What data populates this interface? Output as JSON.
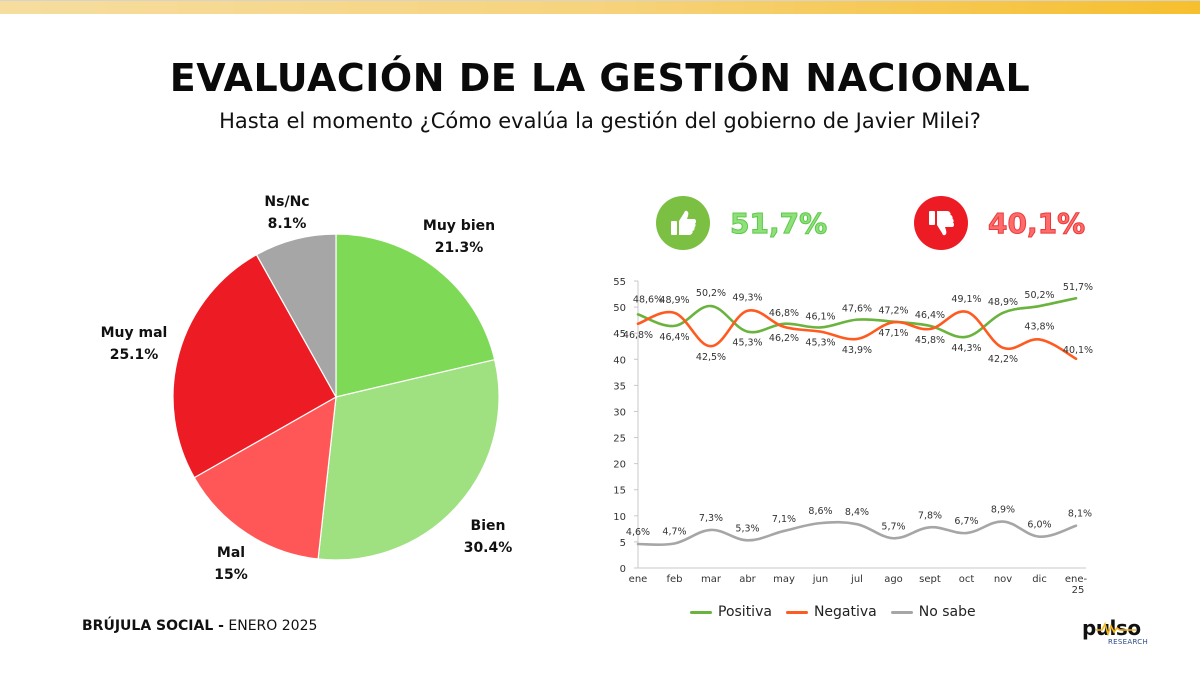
{
  "header": {
    "title": "EVALUACIÓN DE LA GESTIÓN NACIONAL",
    "subtitle": "Hasta el momento ¿Cómo evalúa la gestión del gobierno de Javier Milei?"
  },
  "kpis": {
    "positive": {
      "value": "51,7%",
      "icon": "thumbs-up-icon",
      "color": "#7bc043"
    },
    "negative": {
      "value": "40,1%",
      "icon": "thumbs-down-icon",
      "color": "#ed1c24"
    }
  },
  "footer": {
    "brand": "BRÚJULA SOCIAL -",
    "period": "ENERO 2025"
  },
  "logo": {
    "word": "pulso",
    "sub": "RESEARCH"
  },
  "legend": [
    {
      "name": "Positiva",
      "color": "#6ab33e"
    },
    {
      "name": "Negativa",
      "color": "#ff5a1f"
    },
    {
      "name": "No sabe",
      "color": "#a6a6a6"
    }
  ],
  "chart_data": [
    {
      "type": "pie",
      "title": "",
      "slices": [
        {
          "label": "Muy bien",
          "value": 21.3,
          "display": "21.3%",
          "color": "#7ed957"
        },
        {
          "label": "Bien",
          "value": 30.4,
          "display": "30.4%",
          "color": "#9fe080"
        },
        {
          "label": "Mal",
          "value": 15,
          "display": "15%",
          "color": "#ff5757"
        },
        {
          "label": "Muy mal",
          "value": 25.1,
          "display": "25.1%",
          "color": "#ed1c24"
        },
        {
          "label": "Ns/Nc",
          "value": 8.1,
          "display": "8.1%",
          "color": "#a6a6a6"
        }
      ],
      "start": "12 o'clock, clockwise"
    },
    {
      "type": "line",
      "title": "",
      "xlabel": "",
      "ylabel": "",
      "categories": [
        "ene",
        "feb",
        "mar",
        "abr",
        "may",
        "jun",
        "jul",
        "ago",
        "sept",
        "oct",
        "nov",
        "dic",
        "ene-25"
      ],
      "ylim": [
        0,
        55
      ],
      "yticks": [
        0,
        5,
        10,
        15,
        20,
        25,
        30,
        35,
        40,
        45,
        50,
        55
      ],
      "grid": false,
      "legend_position": "bottom",
      "series": [
        {
          "name": "Positiva",
          "color": "#6ab33e",
          "values": [
            48.6,
            46.4,
            50.2,
            45.3,
            46.8,
            46.1,
            47.6,
            47.2,
            46.4,
            44.3,
            48.9,
            50.2,
            51.7
          ],
          "labels": [
            "48,6%",
            "46,4%",
            "50,2%",
            "45,3%",
            "46,8%",
            "46,1%",
            "47,6%",
            "47,2%",
            "46,4%",
            "44,3%",
            "48,9%",
            "50,2%",
            "51,7%"
          ]
        },
        {
          "name": "Negativa",
          "color": "#ff5a1f",
          "values": [
            46.8,
            48.9,
            42.5,
            49.3,
            46.2,
            45.3,
            43.9,
            47.1,
            45.8,
            49.1,
            42.2,
            43.8,
            40.1
          ],
          "labels": [
            "46,8%",
            "48,9%",
            "42,5%",
            "49,3%",
            "46,2%",
            "45,3%",
            "43,9%",
            "47,1%",
            "45,8%",
            "49,1%",
            "42,2%",
            "43,8%",
            "40,1%"
          ]
        },
        {
          "name": "No sabe",
          "color": "#a6a6a6",
          "values": [
            4.6,
            4.7,
            7.3,
            5.3,
            7.1,
            8.6,
            8.4,
            5.7,
            7.8,
            6.7,
            8.9,
            6.0,
            8.1
          ],
          "labels": [
            "4,6%",
            "4,7%",
            "7,3%",
            "5,3%",
            "7,1%",
            "8,6%",
            "8,4%",
            "5,7%",
            "7,8%",
            "6,7%",
            "8,9%",
            "6,0%",
            "8,1%"
          ]
        }
      ]
    }
  ]
}
